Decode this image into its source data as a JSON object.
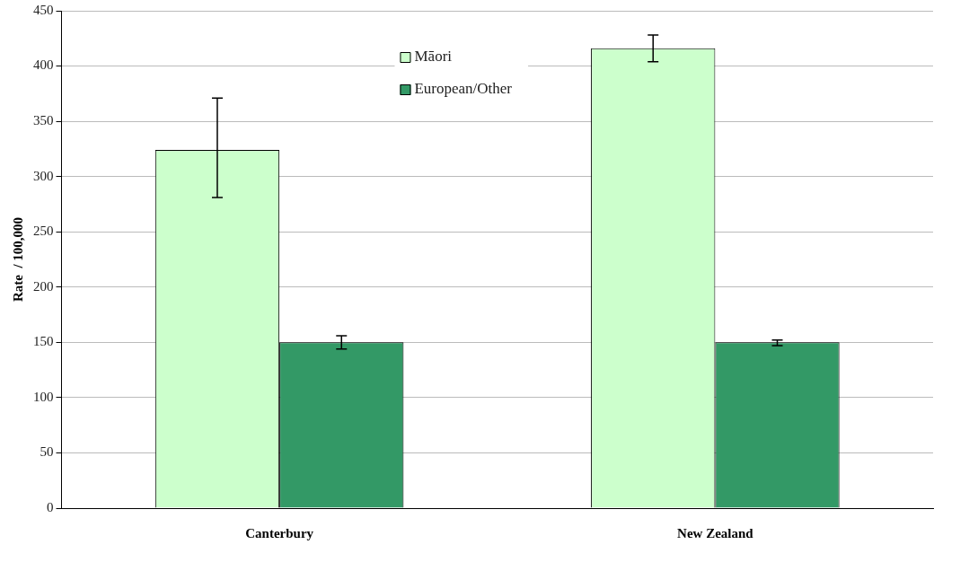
{
  "chart_data": {
    "type": "bar",
    "ylabel": "Rate  / 100,000",
    "categories": [
      "Canterbury",
      "New Zealand"
    ],
    "series": [
      {
        "name": "Māori",
        "color": "#ccffcc",
        "values": [
          324,
          416
        ],
        "errors": [
          [
            281,
            371
          ],
          [
            404,
            428
          ]
        ]
      },
      {
        "name": "European/Other",
        "color": "#339966",
        "values": [
          150,
          150
        ],
        "errors": [
          [
            144,
            156
          ],
          [
            147,
            152
          ]
        ]
      }
    ],
    "ylim": [
      0,
      450
    ],
    "yticks": [
      0,
      50,
      100,
      150,
      200,
      250,
      300,
      350,
      400,
      450
    ],
    "grid": "y",
    "legend": "top"
  }
}
